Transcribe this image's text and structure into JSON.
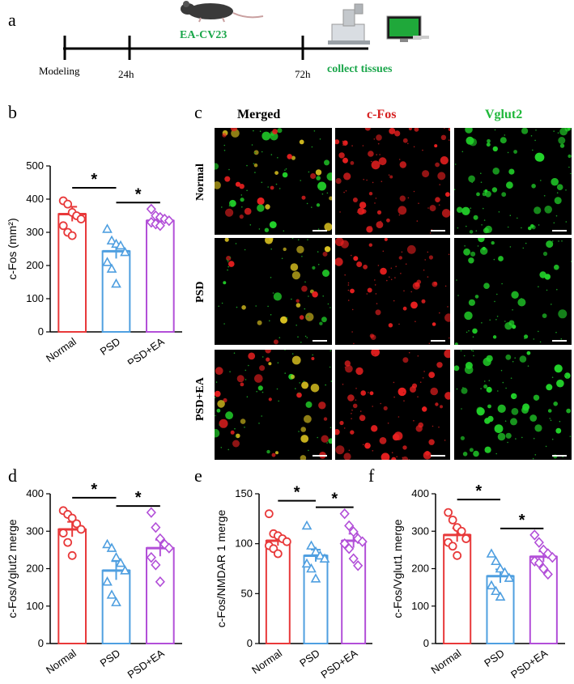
{
  "panel_letters": {
    "a": "a",
    "b": "b",
    "c": "c",
    "d": "d",
    "e": "e",
    "f": "f"
  },
  "timeline": {
    "treatment": "EA-CV23",
    "points": [
      "Modeling",
      "24h",
      "72h"
    ],
    "end_label": "collect tissues"
  },
  "micrographs": {
    "columns": [
      {
        "label": "Merged",
        "color": "#000000"
      },
      {
        "label": "c-Fos",
        "color": "#d62020"
      },
      {
        "label": "Vglut2",
        "color": "#1fb83a"
      }
    ],
    "rows": [
      "Normal",
      "PSD",
      "PSD+EA"
    ]
  },
  "colors": {
    "normal": "#e8393a",
    "psd": "#4f9fe0",
    "psd_ea": "#b24fd8",
    "green": "#1aa64a"
  },
  "chart_data": [
    {
      "id": "b",
      "type": "bar",
      "categories": [
        "Normal",
        "PSD",
        "PSD+EA"
      ],
      "values": [
        355,
        243,
        335
      ],
      "sem": [
        22,
        22,
        10
      ],
      "points": [
        [
          395,
          385,
          360,
          350,
          340,
          320,
          300,
          290
        ],
        [
          310,
          275,
          265,
          260,
          240,
          210,
          190,
          145
        ],
        [
          370,
          350,
          345,
          340,
          335,
          330,
          325,
          320
        ]
      ],
      "markers": [
        "circle",
        "triangle",
        "diamond"
      ],
      "ylabel": "c-Fos (mm²)",
      "ylim": [
        0,
        500
      ],
      "yticks": [
        0,
        100,
        200,
        300,
        400,
        500
      ],
      "significance": [
        {
          "from": 0,
          "to": 1,
          "label": "*"
        },
        {
          "from": 1,
          "to": 2,
          "label": "*"
        }
      ]
    },
    {
      "id": "d",
      "type": "bar",
      "categories": [
        "Normal",
        "PSD",
        "PSD+EA"
      ],
      "values": [
        305,
        195,
        255
      ],
      "sem": [
        20,
        25,
        22
      ],
      "points": [
        [
          355,
          345,
          335,
          320,
          305,
          295,
          270,
          235
        ],
        [
          265,
          255,
          230,
          215,
          195,
          165,
          130,
          110
        ],
        [
          350,
          310,
          280,
          265,
          255,
          230,
          210,
          165
        ]
      ],
      "markers": [
        "circle",
        "triangle",
        "diamond"
      ],
      "ylabel": "c-Fos/Vglut2 merge",
      "ylim": [
        0,
        400
      ],
      "yticks": [
        0,
        100,
        200,
        300,
        400
      ],
      "significance": [
        {
          "from": 0,
          "to": 1,
          "label": "*"
        },
        {
          "from": 1,
          "to": 2,
          "label": "*"
        }
      ]
    },
    {
      "id": "e",
      "type": "bar",
      "categories": [
        "Normal",
        "PSD",
        "PSD+EA"
      ],
      "values": [
        103,
        88,
        103
      ],
      "sem": [
        5,
        6,
        7
      ],
      "points": [
        [
          130,
          110,
          108,
          105,
          102,
          98,
          95,
          90
        ],
        [
          118,
          98,
          92,
          88,
          85,
          80,
          75,
          65
        ],
        [
          130,
          118,
          112,
          105,
          102,
          100,
          95,
          85,
          78
        ]
      ],
      "markers": [
        "circle",
        "triangle",
        "diamond"
      ],
      "ylabel": "c-Fos/NMDAR 1 merge",
      "ylim": [
        0,
        150
      ],
      "yticks": [
        0,
        50,
        100,
        150
      ],
      "significance": [
        {
          "from": 0,
          "to": 1,
          "label": "*"
        },
        {
          "from": 1,
          "to": 2,
          "label": "*"
        }
      ]
    },
    {
      "id": "f",
      "type": "bar",
      "categories": [
        "Normal",
        "PSD",
        "PSD+EA"
      ],
      "values": [
        290,
        180,
        232
      ],
      "sem": [
        18,
        18,
        14
      ],
      "points": [
        [
          350,
          330,
          310,
          300,
          280,
          270,
          260,
          235
        ],
        [
          240,
          220,
          200,
          190,
          175,
          155,
          140,
          125
        ],
        [
          290,
          270,
          250,
          240,
          230,
          220,
          215,
          200,
          185
        ]
      ],
      "markers": [
        "circle",
        "triangle",
        "diamond"
      ],
      "ylabel": "c-Fos/Vglut1 merge",
      "ylim": [
        0,
        400
      ],
      "yticks": [
        0,
        100,
        200,
        300,
        400
      ],
      "significance": [
        {
          "from": 0,
          "to": 1,
          "label": "*"
        },
        {
          "from": 1,
          "to": 2,
          "label": "*"
        }
      ]
    }
  ]
}
